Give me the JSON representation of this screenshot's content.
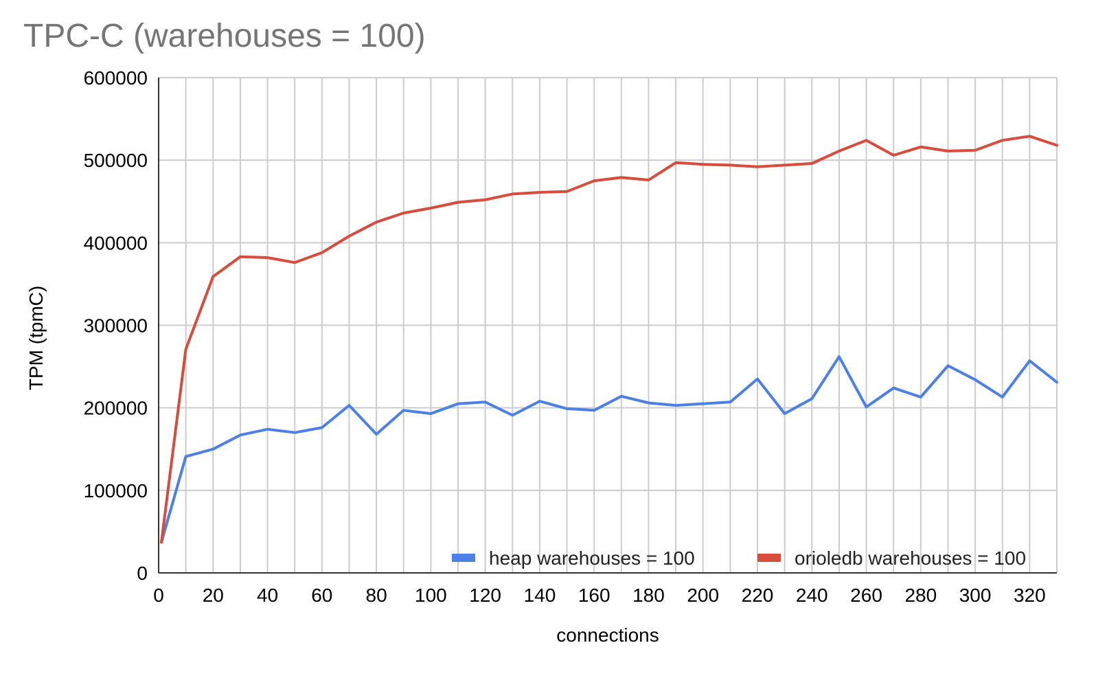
{
  "chart_data": {
    "type": "line",
    "title": "TPC-C (warehouses = 100)",
    "xlabel": "connections",
    "ylabel": "TPM (tpmC)",
    "xlim": [
      0,
      330
    ],
    "ylim": [
      0,
      600000
    ],
    "x_ticks": [
      0,
      20,
      40,
      60,
      80,
      100,
      120,
      140,
      160,
      180,
      200,
      220,
      240,
      260,
      280,
      300,
      320
    ],
    "y_ticks": [
      0,
      100000,
      200000,
      300000,
      400000,
      500000,
      600000
    ],
    "grid": true,
    "legend_position": "bottom-right",
    "x": [
      1,
      10,
      20,
      30,
      40,
      50,
      60,
      70,
      80,
      90,
      100,
      110,
      120,
      130,
      140,
      150,
      160,
      170,
      180,
      190,
      200,
      210,
      220,
      230,
      240,
      250,
      260,
      270,
      280,
      290,
      300,
      310,
      320,
      330
    ],
    "series": [
      {
        "name": "heap warehouses = 100",
        "color": "#4a80e8",
        "values": [
          37000,
          141000,
          150000,
          167000,
          174000,
          170000,
          176000,
          203000,
          168000,
          197000,
          193000,
          205000,
          207000,
          191000,
          208000,
          199000,
          197000,
          214000,
          206000,
          203000,
          205000,
          207000,
          235000,
          193000,
          211000,
          262000,
          201000,
          224000,
          213000,
          251000,
          234000,
          213000,
          257000,
          231000
        ]
      },
      {
        "name": "orioledb warehouses = 100",
        "color": "#d94b3b",
        "values": [
          37000,
          271000,
          359000,
          383000,
          382000,
          376000,
          388000,
          408000,
          425000,
          436000,
          442000,
          449000,
          452000,
          459000,
          461000,
          462000,
          475000,
          479000,
          476000,
          497000,
          495000,
          494000,
          492000,
          494000,
          496000,
          511000,
          524000,
          506000,
          516000,
          511000,
          512000,
          524000,
          529000,
          518000
        ]
      }
    ]
  }
}
